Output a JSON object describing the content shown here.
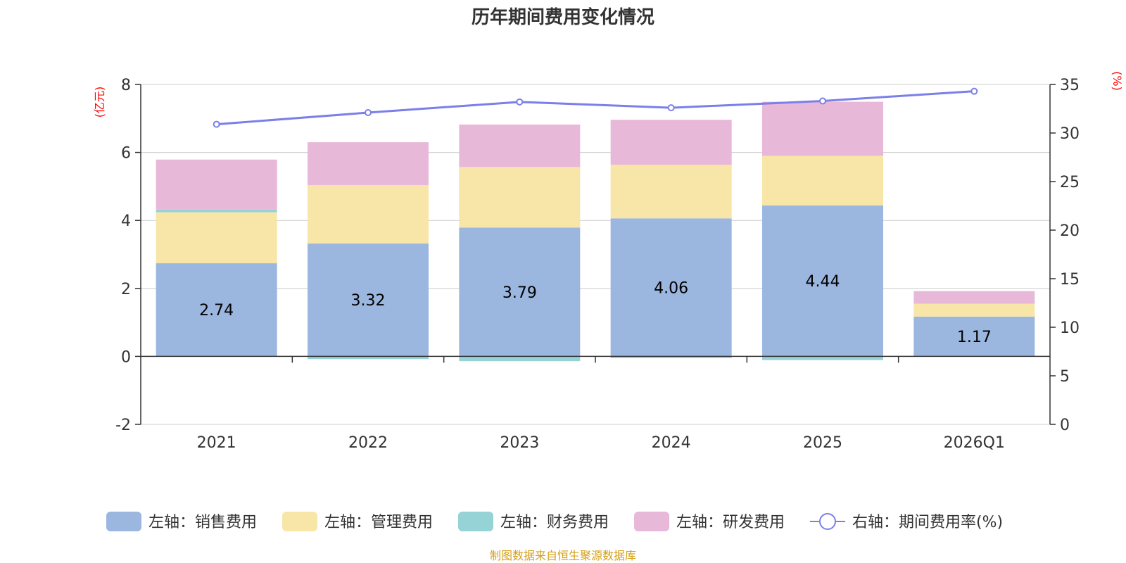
{
  "chart_data": {
    "type": "bar",
    "title": "历年期间费用变化情况",
    "categories": [
      "2021",
      "2022",
      "2023",
      "2024",
      "2025",
      "2026Q1"
    ],
    "left_axis": {
      "unit": "(亿元)",
      "range": [
        -2,
        8
      ],
      "ticks": [
        -2,
        0,
        2,
        4,
        6,
        8
      ]
    },
    "right_axis": {
      "unit": "(%)",
      "range": [
        0,
        35
      ],
      "ticks": [
        0,
        5,
        10,
        15,
        20,
        25,
        30,
        35
      ]
    },
    "series": [
      {
        "name": "左轴：销售费用",
        "axis": "left",
        "kind": "bar",
        "color": "#9bb7e0",
        "values": [
          2.74,
          3.32,
          3.79,
          4.06,
          4.44,
          1.17
        ],
        "show_labels": true
      },
      {
        "name": "左轴：管理费用",
        "axis": "left",
        "kind": "bar",
        "color": "#f8e6a8",
        "values": [
          1.5,
          1.72,
          1.78,
          1.58,
          1.46,
          0.38
        ]
      },
      {
        "name": "左轴：财务费用",
        "axis": "left",
        "kind": "bar",
        "color": "#96d3d6",
        "values": [
          0.08,
          -0.08,
          -0.14,
          -0.05,
          -0.11,
          0.0
        ]
      },
      {
        "name": "左轴：研发费用",
        "axis": "left",
        "kind": "bar",
        "color": "#e8b8d8",
        "values": [
          1.47,
          1.26,
          1.25,
          1.32,
          1.59,
          0.37
        ]
      },
      {
        "name": "右轴：期间费用率(%)",
        "axis": "right",
        "kind": "line",
        "color": "#7b7fe8",
        "values": [
          30.9,
          32.1,
          33.2,
          32.6,
          33.3,
          34.3
        ]
      }
    ],
    "source": "制图数据来自恒生聚源数据库"
  }
}
